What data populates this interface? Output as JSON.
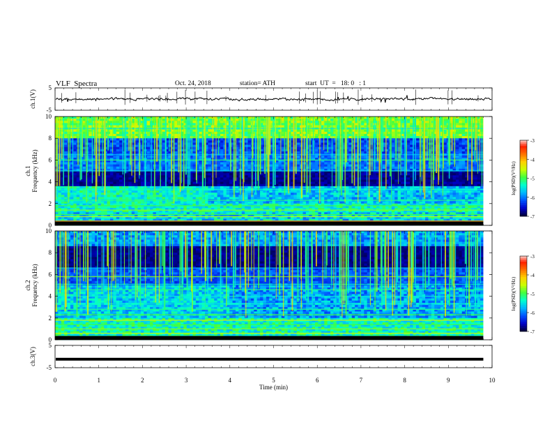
{
  "header": {
    "title": "VLF  Spectra",
    "date": "Oct. 24, 2018",
    "station": "station= ATH",
    "start_ut": "start  UT  =   18: 0   : 1"
  },
  "chart_data": [
    {
      "id": "ch1_voltage",
      "type": "line",
      "ylabel": "ch.1(V)",
      "ylim": [
        -5,
        5
      ],
      "yticks": [
        "5",
        "-5"
      ],
      "xlim": [
        0,
        10
      ],
      "baseline": 0,
      "color": "#000000"
    },
    {
      "id": "ch1_spectrogram",
      "type": "heatmap",
      "ylabel": "ch.1\nFrequency  (kHz)",
      "ylim": [
        0,
        10
      ],
      "yticks": [
        "0",
        "2",
        "4",
        "6",
        "8",
        "10"
      ],
      "xlim": [
        0,
        9.8
      ],
      "colorbar": {
        "label": "log(PSD)(V²/Hz)",
        "range": [
          -7,
          -3
        ],
        "ticks": [
          "-3",
          "-4",
          "-5",
          "-6",
          "-7"
        ]
      }
    },
    {
      "id": "ch2_spectrogram",
      "type": "heatmap",
      "ylabel": "ch.2\nFrequency  (kHz)",
      "ylim": [
        0,
        10
      ],
      "yticks": [
        "0",
        "2",
        "4",
        "6",
        "8",
        "10"
      ],
      "xlim": [
        0,
        9.8
      ],
      "colorbar": {
        "label": "log(PSD)(V²/Hz)",
        "range": [
          -7,
          -3
        ],
        "ticks": [
          "-3",
          "-4",
          "-5",
          "-6",
          "-7"
        ]
      }
    },
    {
      "id": "ch3_voltage",
      "type": "line",
      "ylabel": "ch.3(V)",
      "ylim": [
        -5,
        5
      ],
      "yticks": [
        "5",
        "-5"
      ],
      "xlim": [
        0,
        9.8
      ],
      "baseline": -1.2,
      "color": "#000000"
    }
  ],
  "x_axis": {
    "label": "Time  (min)",
    "ticks": [
      "0",
      "1",
      "2",
      "3",
      "4",
      "5",
      "6",
      "7",
      "8",
      "9",
      "10"
    ],
    "range": [
      0,
      10
    ]
  },
  "colormap": [
    "#000033",
    "#0000c8",
    "#0050ff",
    "#00b4ff",
    "#00ffd0",
    "#40ff40",
    "#c8ff00",
    "#ffd000",
    "#ff7000",
    "#ff2000",
    "#ffffff"
  ]
}
